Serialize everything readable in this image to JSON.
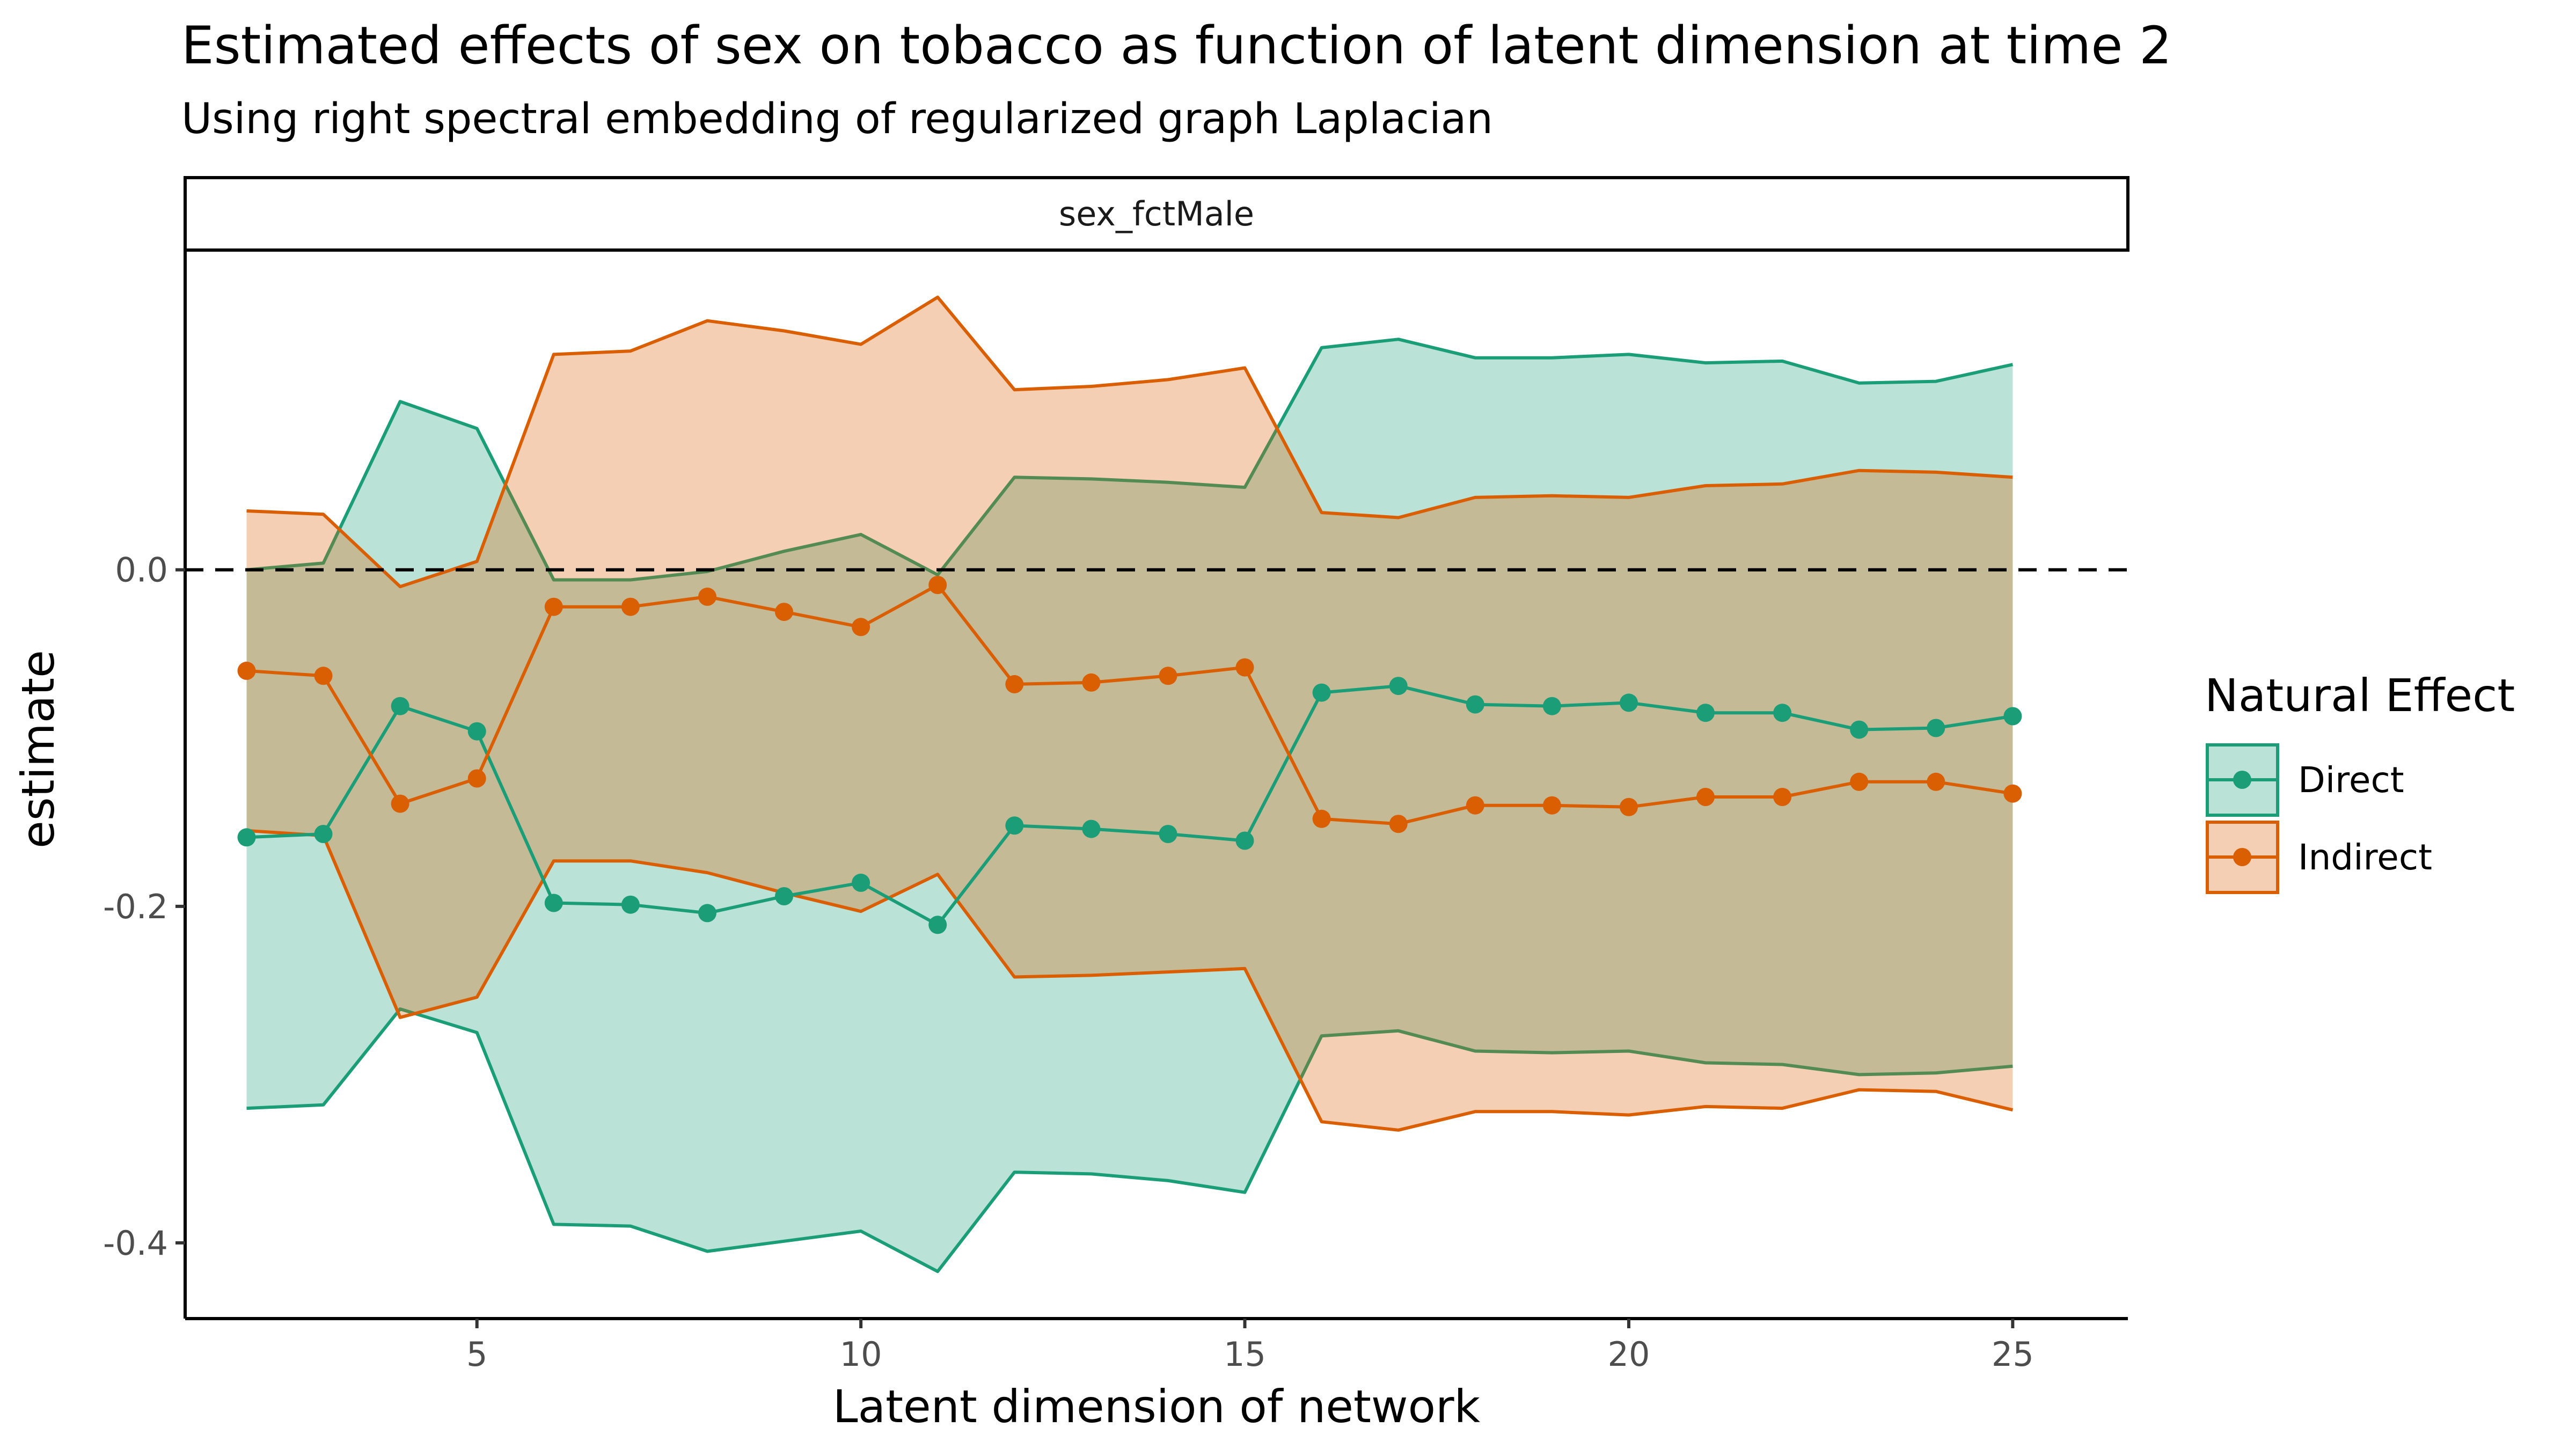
{
  "chart_data": {
    "type": "line",
    "title": "Estimated effects of sex on tobacco as function of latent dimension at time 2",
    "subtitle": "Using right spectral embedding of regularized graph Laplacian",
    "facet_label": "sex_fctMale",
    "xlabel": "Latent dimension of network",
    "ylabel": "estimate",
    "xlim": [
      1.2,
      26.5
    ],
    "ylim": [
      -0.445,
      0.19
    ],
    "x_ticks": [
      5,
      10,
      15,
      20,
      25
    ],
    "x_tick_labels": [
      "5",
      "10",
      "15",
      "20",
      "25"
    ],
    "y_ticks": [
      0.0,
      -0.2,
      -0.4
    ],
    "y_tick_labels": [
      "0.0",
      "-0.2",
      "-0.4"
    ],
    "reference_line": {
      "y": 0,
      "style": "dashed"
    },
    "grid": false,
    "legend": {
      "title": "Natural Effect",
      "position": "right"
    },
    "x": [
      2,
      3,
      4,
      5,
      6,
      7,
      8,
      9,
      10,
      11,
      12,
      13,
      14,
      15,
      16,
      17,
      18,
      19,
      20,
      21,
      22,
      23,
      24,
      25
    ],
    "series": [
      {
        "name": "Direct",
        "color": "#1b9e77",
        "fill": "#b9e3d8",
        "estimate": [
          -0.159,
          -0.157,
          -0.081,
          -0.096,
          -0.198,
          -0.199,
          -0.204,
          -0.194,
          -0.186,
          -0.211,
          -0.152,
          -0.154,
          -0.157,
          -0.161,
          -0.073,
          -0.069,
          -0.08,
          -0.081,
          -0.079,
          -0.085,
          -0.085,
          -0.095,
          -0.094,
          -0.087
        ],
        "lower": [
          -0.32,
          -0.318,
          -0.261,
          -0.275,
          -0.389,
          -0.39,
          -0.405,
          -0.399,
          -0.393,
          -0.417,
          -0.358,
          -0.359,
          -0.363,
          -0.37,
          -0.277,
          -0.274,
          -0.286,
          -0.287,
          -0.286,
          -0.293,
          -0.294,
          -0.3,
          -0.299,
          -0.295
        ],
        "upper": [
          0.0,
          0.004,
          0.1,
          0.084,
          -0.006,
          -0.006,
          -0.001,
          0.011,
          0.021,
          -0.003,
          0.055,
          0.054,
          0.052,
          0.049,
          0.132,
          0.137,
          0.126,
          0.126,
          0.128,
          0.123,
          0.124,
          0.111,
          0.112,
          0.122
        ]
      },
      {
        "name": "Indirect",
        "color": "#d95f02",
        "fill": "#f6cdb1",
        "estimate": [
          -0.06,
          -0.063,
          -0.139,
          -0.124,
          -0.022,
          -0.022,
          -0.016,
          -0.025,
          -0.034,
          -0.009,
          -0.068,
          -0.067,
          -0.063,
          -0.058,
          -0.148,
          -0.151,
          -0.14,
          -0.14,
          -0.141,
          -0.135,
          -0.135,
          -0.126,
          -0.126,
          -0.133
        ],
        "lower": [
          -0.155,
          -0.158,
          -0.266,
          -0.254,
          -0.173,
          -0.173,
          -0.18,
          -0.192,
          -0.203,
          -0.181,
          -0.242,
          -0.241,
          -0.239,
          -0.237,
          -0.328,
          -0.333,
          -0.322,
          -0.322,
          -0.324,
          -0.319,
          -0.32,
          -0.309,
          -0.31,
          -0.321
        ],
        "upper": [
          0.035,
          0.033,
          -0.01,
          0.005,
          0.128,
          0.13,
          0.148,
          0.142,
          0.134,
          0.162,
          0.107,
          0.109,
          0.113,
          0.12,
          0.034,
          0.031,
          0.043,
          0.044,
          0.043,
          0.05,
          0.051,
          0.059,
          0.058,
          0.055
        ]
      }
    ]
  }
}
